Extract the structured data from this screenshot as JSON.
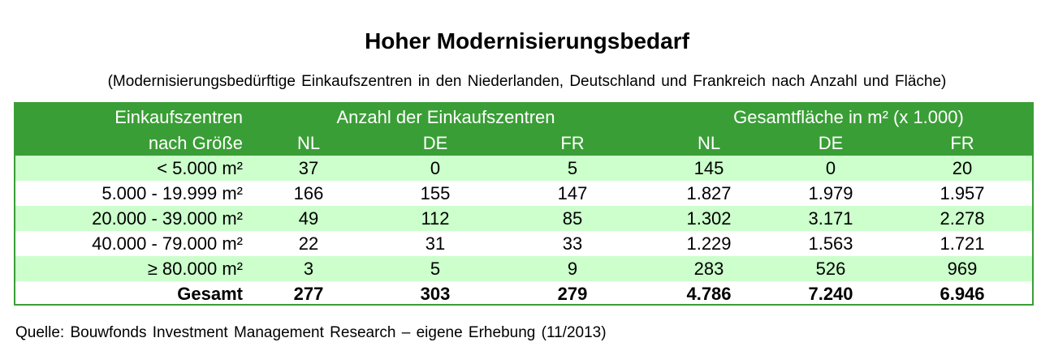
{
  "title": "Hoher Modernisierungsbedarf",
  "subtitle": "(Modernisierungsbedürftige  Einkaufszentren  in den Niederlanden, Deutschland und Frankreich nach Anzahl und Fläche)",
  "table": {
    "header": {
      "row_label_line1": "Einkaufszentren",
      "row_label_line2": "nach Größe",
      "group_count": "Anzahl der Einkaufszentren",
      "group_area": "Gesamtfläche in m² (x 1.000)",
      "columns": [
        "NL",
        "DE",
        "FR",
        "NL",
        "DE",
        "FR"
      ]
    },
    "rows": [
      {
        "label": "< 5.000 m²",
        "values": [
          "37",
          "0",
          "5",
          "145",
          "0",
          "20"
        ]
      },
      {
        "label": "5.000 - 19.999 m²",
        "values": [
          "166",
          "155",
          "147",
          "1.827",
          "1.979",
          "1.957"
        ]
      },
      {
        "label": "20.000 - 39.000 m²",
        "values": [
          "49",
          "112",
          "85",
          "1.302",
          "3.171",
          "2.278"
        ]
      },
      {
        "label": "40.000 - 79.000 m²",
        "values": [
          "22",
          "31",
          "33",
          "1.229",
          "1.563",
          "1.721"
        ]
      },
      {
        "label": "≥ 80.000 m²",
        "values": [
          "3",
          "5",
          "9",
          "283",
          "526",
          "969"
        ]
      },
      {
        "label": "Gesamt",
        "values": [
          "277",
          "303",
          "279",
          "4.786",
          "7.240",
          "6.946"
        ]
      }
    ]
  },
  "source": "Quelle: Bouwfonds Investment Management Research – eigene Erhebung (11/2013)",
  "colors": {
    "header_green": "#3a9e36",
    "stripe_light_green": "#ccffcc",
    "border_green": "#3a9e36"
  }
}
